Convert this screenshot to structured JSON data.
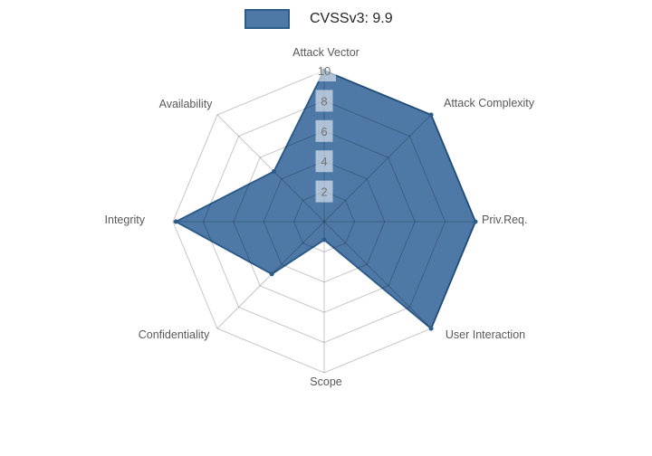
{
  "legend": {
    "label": "CVSSv3: 9.9",
    "swatch_color": "#4E79A7",
    "swatch_border": "#2E5C8A"
  },
  "chart_data": {
    "type": "radar",
    "title": "",
    "categories": [
      "Attack Vector",
      "Attack Complexity",
      "Priv.Req.",
      "User Interaction",
      "Scope",
      "Confidentiality",
      "Integrity",
      "Availability"
    ],
    "series": [
      {
        "name": "CVSSv3: 9.9",
        "values": [
          10,
          10,
          10,
          10,
          1.2,
          4.9,
          9.8,
          4.7
        ]
      }
    ],
    "radial_ticks": [
      2,
      4,
      6,
      8,
      10
    ],
    "rlim": [
      0,
      10
    ],
    "grid": true,
    "legend_position": "top-center",
    "colors": {
      "fill": "#4E79A7",
      "line": "#2E5C8A",
      "marker": "#2E5C8A",
      "grid": "rgba(0,0,0,0.22)",
      "tick_box": "rgba(255,255,255,0.55)",
      "tick_text": "#737373",
      "axis_label": "#595959"
    }
  }
}
